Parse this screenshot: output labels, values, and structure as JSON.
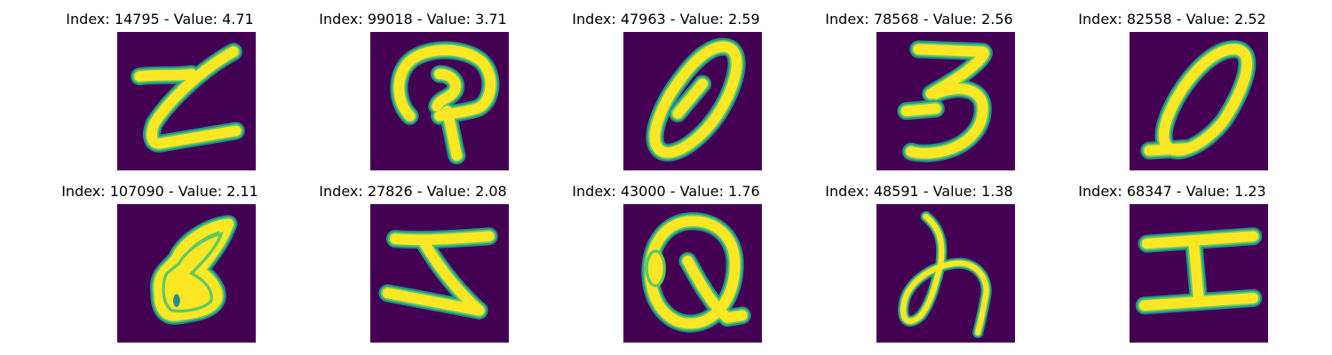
{
  "palette": {
    "background": "#440154",
    "edge": "#21918c",
    "mid": "#5ec962",
    "stroke": "#fde725"
  },
  "panels": [
    {
      "title": "Index: 14795 - Value: 4.71",
      "index": 14795,
      "value": 4.71
    },
    {
      "title": "Index: 99018 - Value: 3.71",
      "index": 99018,
      "value": 3.71
    },
    {
      "title": "Index: 47963 - Value: 2.59",
      "index": 47963,
      "value": 2.59
    },
    {
      "title": "Index: 78568 - Value: 2.56",
      "index": 78568,
      "value": 2.56
    },
    {
      "title": "Index: 82558 - Value: 2.52",
      "index": 82558,
      "value": 2.52
    },
    {
      "title": "Index: 107090 - Value: 2.11",
      "index": 107090,
      "value": 2.11
    },
    {
      "title": "Index: 27826 - Value: 2.08",
      "index": 27826,
      "value": 2.08
    },
    {
      "title": "Index: 43000 - Value: 1.76",
      "index": 43000,
      "value": 1.76
    },
    {
      "title": "Index: 48591 - Value: 1.38",
      "index": 48591,
      "value": 1.38
    },
    {
      "title": "Index: 68347 - Value: 1.23",
      "index": 68347,
      "value": 1.23
    }
  ]
}
